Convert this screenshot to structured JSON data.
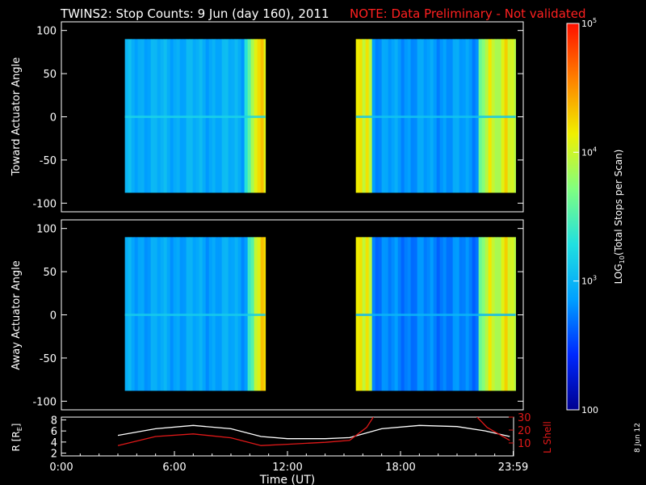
{
  "title": "TWINS2: Stop Counts:  9 Jun (day 160), 2011",
  "note": "NOTE: Data Preliminary - Not validated",
  "side_date": "8 Jun 12",
  "colors": {
    "note": "#ff2020",
    "lshell": "#e01818",
    "radius": "#ffffff",
    "background": "#000000",
    "colormap": [
      "#000090",
      "#0028ff",
      "#00a0ff",
      "#20e0e0",
      "#80ff80",
      "#f0f000",
      "#ff8000",
      "#ff1000"
    ]
  },
  "chart_data": [
    {
      "type": "heatmap",
      "name": "toward-panel",
      "ylabel": "Toward Actuator Angle",
      "yticks": [
        100,
        50,
        0,
        -50,
        -100
      ],
      "ylim": [
        -110,
        110
      ],
      "xlim": [
        0,
        24
      ],
      "data_y_range": [
        -88,
        90
      ],
      "segments": [
        {
          "x_start": 3.3,
          "x_end": 10.6,
          "base_log": 2.95,
          "bright_bands": [
            {
              "x": 9.7,
              "log": 3.6
            },
            {
              "x": 10.0,
              "log": 4.1
            },
            {
              "x": 10.3,
              "log": 4.4
            }
          ]
        },
        {
          "x_start": 15.3,
          "x_end": 23.6,
          "base_log": 2.85,
          "bright_bands": [
            {
              "x": 15.4,
              "log": 4.3
            },
            {
              "x": 15.6,
              "log": 4.0
            },
            {
              "x": 15.8,
              "log": 4.2
            },
            {
              "x": 21.8,
              "log": 3.8
            },
            {
              "x": 22.2,
              "log": 4.2
            },
            {
              "x": 22.6,
              "log": 4.0
            },
            {
              "x": 23.0,
              "log": 4.3
            },
            {
              "x": 23.4,
              "log": 4.1
            }
          ]
        }
      ]
    },
    {
      "type": "heatmap",
      "name": "away-panel",
      "ylabel": "Away Actuator Angle",
      "yticks": [
        100,
        50,
        0,
        -50,
        -100
      ],
      "ylim": [
        -110,
        110
      ],
      "xlim": [
        0,
        24
      ],
      "data_y_range": [
        -88,
        90
      ],
      "segments": [
        {
          "x_start": 3.3,
          "x_end": 10.6,
          "base_log": 2.9,
          "bright_bands": [
            {
              "x": 9.8,
              "log": 3.6
            },
            {
              "x": 10.1,
              "log": 4.1
            },
            {
              "x": 10.4,
              "log": 4.4
            }
          ]
        },
        {
          "x_start": 15.3,
          "x_end": 23.6,
          "base_log": 2.75,
          "bright_bands": [
            {
              "x": 15.4,
              "log": 4.3
            },
            {
              "x": 15.6,
              "log": 4.0
            },
            {
              "x": 15.8,
              "log": 4.2
            },
            {
              "x": 21.8,
              "log": 3.8
            },
            {
              "x": 22.2,
              "log": 4.2
            },
            {
              "x": 22.6,
              "log": 4.0
            },
            {
              "x": 23.0,
              "log": 4.3
            },
            {
              "x": 23.4,
              "log": 4.1
            }
          ]
        }
      ]
    },
    {
      "type": "line",
      "name": "orbit-panel",
      "xlabel": "Time (UT)",
      "xticks": [
        "0:00",
        "6:00",
        "12:00",
        "18:00",
        "23:59"
      ],
      "xtick_values": [
        0,
        6,
        12,
        18,
        23.98
      ],
      "xlim": [
        0,
        24
      ],
      "ylabel_left": "R [R",
      "ylabel_left_sub": "E",
      "ylabel_left_end": "]",
      "yticks_left": [
        2,
        4,
        6,
        8
      ],
      "ylim_left": [
        1.5,
        8.5
      ],
      "ylabel_right": "L Shell",
      "yticks_right": [
        10,
        20,
        30
      ],
      "ylim_right": [
        0,
        30
      ],
      "series": [
        {
          "name": "R",
          "axis": "left",
          "x": [
            3.0,
            5.0,
            7.0,
            9.0,
            10.6,
            12,
            14,
            15.3,
            17,
            19,
            21,
            22.5,
            23.8
          ],
          "y": [
            5.2,
            6.4,
            7.0,
            6.4,
            5.0,
            4.6,
            4.6,
            4.8,
            6.4,
            7.0,
            6.8,
            6.0,
            5.0
          ]
        },
        {
          "name": "L Shell",
          "axis": "right",
          "x": [
            3.0,
            5.0,
            7.0,
            9.0,
            10.6,
            12,
            14,
            15.3,
            16.2,
            16.6,
            22.0,
            22.6,
            23.8
          ],
          "y": [
            8.0,
            15.0,
            17.0,
            14.0,
            8.0,
            9.0,
            10.5,
            12.0,
            22.0,
            31.0,
            31.0,
            22.0,
            12.0
          ]
        }
      ]
    }
  ],
  "colorbar": {
    "label": "LOG",
    "label_sub": "10",
    "label_end": "(Total Stops per Scan)",
    "ticks": [
      {
        "log": 5,
        "base": "10",
        "exp": "5"
      },
      {
        "log": 4,
        "base": "10",
        "exp": "4"
      },
      {
        "log": 3,
        "base": "10",
        "exp": "3"
      },
      {
        "log": 2,
        "base": "100",
        "exp": ""
      }
    ],
    "log_range": [
      2,
      5
    ]
  }
}
